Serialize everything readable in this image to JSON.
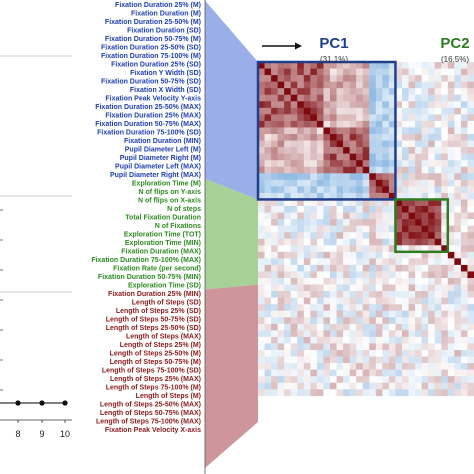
{
  "chart_data": [
    {
      "type": "line",
      "x_tick_labels": [
        "8",
        "9",
        "10"
      ],
      "x": [
        8,
        9,
        10
      ],
      "values": [
        0,
        0,
        0
      ]
    },
    {
      "type": "heatmap",
      "pcs": [
        {
          "label": "PC1",
          "variance": "(31.1%)",
          "color": "#1f3f8f"
        },
        {
          "label": "PC2",
          "variance": "(16.5%)",
          "color": "#2e7d22"
        }
      ],
      "groups": [
        {
          "name": "blue",
          "color": "#1f3fb0",
          "band": "#8fa6e8",
          "count": 21
        },
        {
          "name": "green",
          "color": "#2e8b22",
          "band": "#9ccc8c",
          "count": 13
        },
        {
          "name": "red",
          "color": "#8b1a1a",
          "band": "#c98a8f",
          "count": 21
        }
      ],
      "row_labels": [
        "Fixation Duration 25% (M)",
        "Fixation Duration (M)",
        "Fixation Duration 25-50% (M)",
        "Fixation Duration (SD)",
        "Fixation Duration 50-75% (M)",
        "Fixation Duration 25-50% (SD)",
        "Fixation Duration 75-100% (M)",
        "Fixation Duration 25% (SD)",
        "Fixation Y Width (SD)",
        "Fixation Duration 50-75% (SD)",
        "Fixation X Width (SD)",
        "Fixation Peak Velocity Y-axis",
        "Fixation Duration 25-50% (MAX)",
        "Fixation Duration 25% (MAX)",
        "Fixation Duration 50-75% (MAX)",
        "Fixation Duration 75-100% (SD)",
        "Fixation Duration (MIN)",
        "Pupil Diameter Left (M)",
        "Pupil Diameter Right (M)",
        "Pupil Diameter Left (MAX)",
        "Pupil Diameter Right (MAX)",
        "Exploration Time (M)",
        "N of flips on Y-axis",
        "N of flips on X-axis",
        "N of steps",
        "Total Fixation Duration",
        "N of Fixations",
        "Exploration Time (TOT)",
        "Exploration Time (MIN)",
        "Fixation Duration (MAX)",
        "Fixation Duration 75-100% (MAX)",
        "Fixation Rate (per second)",
        "Fixation Duration 50-75% (MIN)",
        "Exploration Time (SD)",
        "Fixation Duration 25% (MIN)",
        "Length of Steps (SD)",
        "Length of Steps 25% (SD)",
        "Length of Steps 50-75% (SD)",
        "Length of Steps 25-50% (SD)",
        "Length of Steps (MAX)",
        "Length of Steps 25% (M)",
        "Length of Steps 25-50% (M)",
        "Length of Steps 50-75% (M)",
        "Length of Steps 75-100% (SD)",
        "Length of Steps 25% (MAX)",
        "Length of Steps 75-100% (M)",
        "Length of Steps (M)",
        "Length of Steps 25-50% (MAX)",
        "Length of Steps 50-75% (MAX)",
        "Length of Steps 75-100% (MAX)",
        "Fixation Peak Velocity X-axis"
      ]
    }
  ]
}
